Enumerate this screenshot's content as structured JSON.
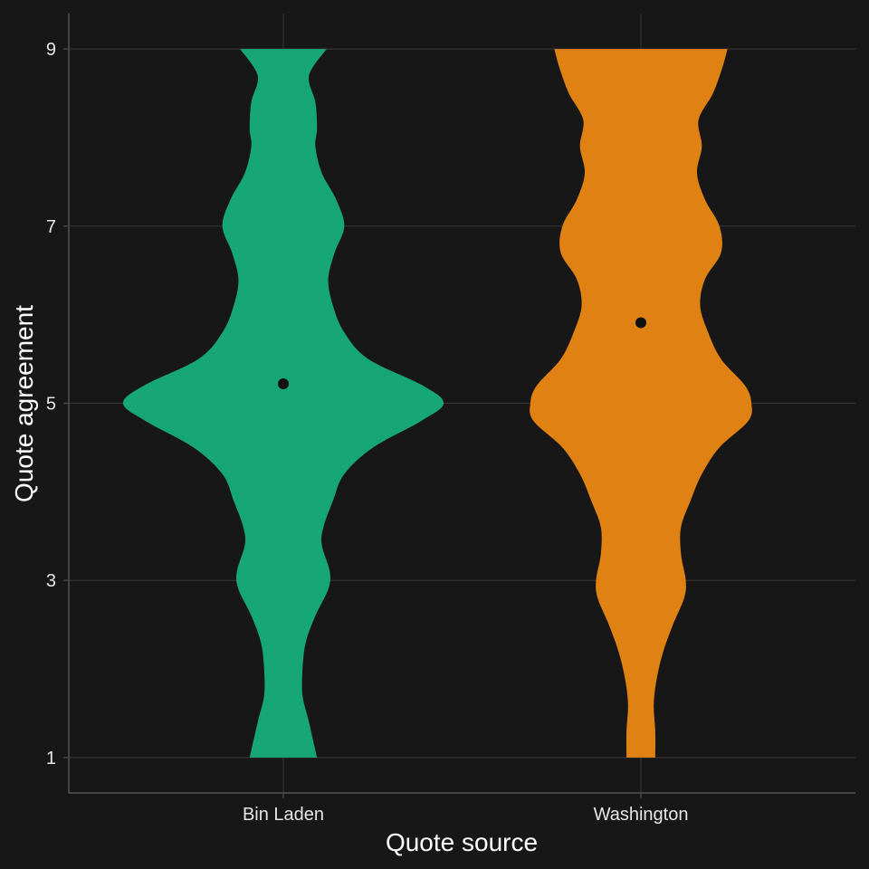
{
  "chart_data": {
    "type": "violin",
    "xlabel": "Quote source",
    "ylabel": "Quote agreement",
    "ylim": [
      0.6,
      9.4
    ],
    "y_ticks": [
      1,
      3,
      5,
      7,
      9
    ],
    "categories": [
      "Bin Laden",
      "Washington"
    ],
    "grid": true,
    "background": "#171717",
    "series": [
      {
        "category": "Bin Laden",
        "color": "#17a676",
        "mean": 5.22,
        "density_profile": [
          [
            1.0,
            0.21
          ],
          [
            1.4,
            0.16
          ],
          [
            1.7,
            0.12
          ],
          [
            2.0,
            0.12
          ],
          [
            2.3,
            0.14
          ],
          [
            2.6,
            0.2
          ],
          [
            2.9,
            0.28
          ],
          [
            3.1,
            0.29
          ],
          [
            3.4,
            0.24
          ],
          [
            3.6,
            0.25
          ],
          [
            3.9,
            0.31
          ],
          [
            4.2,
            0.38
          ],
          [
            4.5,
            0.56
          ],
          [
            4.8,
            0.86
          ],
          [
            5.0,
            1.0
          ],
          [
            5.2,
            0.87
          ],
          [
            5.5,
            0.53
          ],
          [
            5.8,
            0.38
          ],
          [
            6.1,
            0.31
          ],
          [
            6.4,
            0.28
          ],
          [
            6.7,
            0.32
          ],
          [
            7.0,
            0.38
          ],
          [
            7.3,
            0.33
          ],
          [
            7.6,
            0.24
          ],
          [
            7.9,
            0.2
          ],
          [
            8.1,
            0.21
          ],
          [
            8.4,
            0.2
          ],
          [
            8.7,
            0.16
          ],
          [
            9.0,
            0.27
          ]
        ]
      },
      {
        "category": "Washington",
        "color": "#e08213",
        "mean": 5.91,
        "density_profile": [
          [
            1.0,
            0.09
          ],
          [
            1.3,
            0.09
          ],
          [
            1.6,
            0.08
          ],
          [
            1.9,
            0.1
          ],
          [
            2.2,
            0.14
          ],
          [
            2.5,
            0.2
          ],
          [
            2.8,
            0.27
          ],
          [
            3.0,
            0.28
          ],
          [
            3.3,
            0.25
          ],
          [
            3.6,
            0.25
          ],
          [
            3.9,
            0.31
          ],
          [
            4.2,
            0.38
          ],
          [
            4.5,
            0.49
          ],
          [
            4.8,
            0.67
          ],
          [
            5.0,
            0.69
          ],
          [
            5.2,
            0.65
          ],
          [
            5.5,
            0.5
          ],
          [
            5.8,
            0.42
          ],
          [
            6.1,
            0.37
          ],
          [
            6.4,
            0.4
          ],
          [
            6.7,
            0.5
          ],
          [
            7.0,
            0.49
          ],
          [
            7.3,
            0.4
          ],
          [
            7.6,
            0.35
          ],
          [
            7.9,
            0.38
          ],
          [
            8.2,
            0.36
          ],
          [
            8.5,
            0.45
          ],
          [
            8.8,
            0.51
          ],
          [
            9.0,
            0.54
          ]
        ]
      }
    ]
  }
}
